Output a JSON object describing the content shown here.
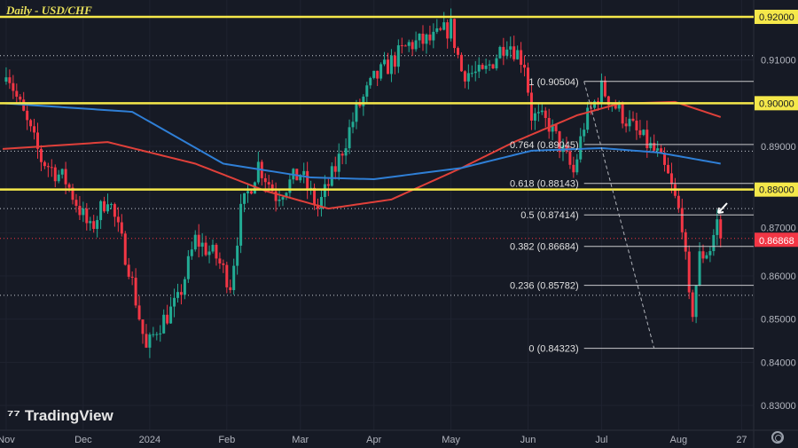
{
  "chart_data": {
    "type": "candlestick",
    "title": "Daily - USD/CHF",
    "symbol": "USD/CHF",
    "timeframe": "Daily",
    "ylim": [
      0.825,
      0.9235
    ],
    "y_ticks": [
      "0.91000",
      "0.89000",
      "0.87000",
      "0.86000",
      "0.85000",
      "0.84000",
      "0.83000"
    ],
    "y_tick_values": [
      0.91,
      0.89,
      0.87,
      0.86,
      0.85,
      0.84,
      0.83
    ],
    "x_ticks": [
      {
        "label": "Nov",
        "day": 1
      },
      {
        "label": "Dec",
        "day": 23
      },
      {
        "label": "2024",
        "day": 42
      },
      {
        "label": "Feb",
        "day": 64
      },
      {
        "label": "Mar",
        "day": 85
      },
      {
        "label": "Apr",
        "day": 106
      },
      {
        "label": "May",
        "day": 128
      },
      {
        "label": "Jun",
        "day": 150
      },
      {
        "label": "Jul",
        "day": 171
      },
      {
        "label": "Aug",
        "day": 193
      },
      {
        "label": "27",
        "day": 211
      }
    ],
    "close_anchors": [
      [
        0,
        0.905
      ],
      [
        1,
        0.9085
      ],
      [
        4,
        0.9013
      ],
      [
        11,
        0.887
      ],
      [
        18,
        0.882
      ],
      [
        25,
        0.8705
      ],
      [
        30,
        0.8787
      ],
      [
        36,
        0.8623
      ],
      [
        41,
        0.8427
      ],
      [
        44,
        0.8479
      ],
      [
        50,
        0.854
      ],
      [
        55,
        0.8684
      ],
      [
        61,
        0.8643
      ],
      [
        65,
        0.8582
      ],
      [
        68,
        0.8746
      ],
      [
        73,
        0.8859
      ],
      [
        78,
        0.8787
      ],
      [
        85,
        0.8838
      ],
      [
        90,
        0.8756
      ],
      [
        95,
        0.8849
      ],
      [
        101,
        0.8982
      ],
      [
        106,
        0.9054
      ],
      [
        111,
        0.9095
      ],
      [
        116,
        0.9136
      ],
      [
        123,
        0.9147
      ],
      [
        128,
        0.9177
      ],
      [
        131,
        0.9075
      ],
      [
        137,
        0.9064
      ],
      [
        144,
        0.9147
      ],
      [
        149,
        0.9095
      ],
      [
        151,
        0.8972
      ],
      [
        156,
        0.8951
      ],
      [
        163,
        0.8838
      ],
      [
        166,
        0.8951
      ],
      [
        171,
        0.9034
      ],
      [
        176,
        0.8982
      ],
      [
        181,
        0.8931
      ],
      [
        187,
        0.888
      ],
      [
        190,
        0.8828
      ],
      [
        194,
        0.8725
      ],
      [
        196,
        0.854
      ],
      [
        197,
        0.852
      ],
      [
        199,
        0.8643
      ],
      [
        202,
        0.8664
      ],
      [
        204,
        0.8725
      ],
      [
        205,
        0.86868
      ]
    ],
    "ma_100": [
      [
        0,
        0.8894
      ],
      [
        30,
        0.891
      ],
      [
        55,
        0.886
      ],
      [
        75,
        0.8797
      ],
      [
        93,
        0.8756
      ],
      [
        111,
        0.8777
      ],
      [
        131,
        0.885
      ],
      [
        146,
        0.891
      ],
      [
        164,
        0.8972
      ],
      [
        176,
        0.8999
      ],
      [
        192,
        0.9003
      ],
      [
        205,
        0.8968
      ]
    ],
    "ma_200": [
      [
        0,
        0.9
      ],
      [
        37,
        0.898
      ],
      [
        63,
        0.886
      ],
      [
        88,
        0.8828
      ],
      [
        106,
        0.8824
      ],
      [
        131,
        0.885
      ],
      [
        151,
        0.889
      ],
      [
        171,
        0.8896
      ],
      [
        187,
        0.8886
      ],
      [
        205,
        0.886
      ]
    ],
    "key_levels": [
      {
        "label": "0.92000",
        "value": 0.92
      },
      {
        "label": "0.90000",
        "value": 0.9
      },
      {
        "label": "0.88000",
        "value": 0.88
      }
    ],
    "dotted_levels": [
      0.911,
      0.8889,
      0.8756,
      0.8555
    ],
    "last_price": {
      "label": "0.86868",
      "value": 0.86868
    },
    "fib_levels": [
      {
        "label": "1 (0.90504)",
        "value": 0.90504
      },
      {
        "label": "0.764 (0.89045)",
        "value": 0.89045
      },
      {
        "label": "0.618 (0.88143)",
        "value": 0.88143
      },
      {
        "label": "0.5 (0.87414)",
        "value": 0.87414
      },
      {
        "label": "0.382 (0.86684)",
        "value": 0.86684
      },
      {
        "label": "0.236 (0.85782)",
        "value": 0.85782
      },
      {
        "label": "0 (0.84323)",
        "value": 0.84323
      }
    ],
    "fib_start_day": 166,
    "trendline": [
      [
        166,
        0.90504
      ],
      [
        186,
        0.84323
      ]
    ],
    "colors": {
      "up": "#22ab94",
      "down": "#f23645",
      "ma100": "#e0403a",
      "ma200": "#2f7fd6",
      "key": "#f5e84a",
      "bg": "#161a25"
    }
  },
  "branding": {
    "logo": "TradingView"
  }
}
